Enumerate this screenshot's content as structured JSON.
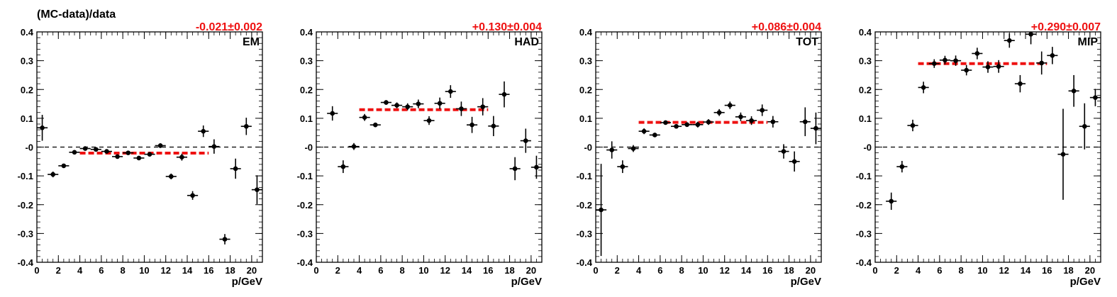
{
  "figure_ylabel": "(MC-data)/data",
  "chart_data": [
    {
      "type": "scatter",
      "label": "EM",
      "fit_text": "-0.021±0.002",
      "fit_value": -0.021,
      "fit_error": 0.002,
      "fit_range": [
        4,
        16
      ],
      "xlabel": "p/GeV",
      "xlim": [
        0,
        21
      ],
      "ylim": [
        -0.4,
        0.4
      ],
      "xticks": [
        "0",
        "2",
        "4",
        "6",
        "8",
        "10",
        "12",
        "14",
        "16",
        "18",
        "20"
      ],
      "yticks": [
        "-0.4",
        "-0.3",
        "-0.2",
        "-0.1",
        "-0",
        "0.1",
        "0.2",
        "0.3",
        "0.4"
      ],
      "reference_line": 0,
      "points": [
        {
          "x": 0.5,
          "y": 0.067,
          "yerr": 0.045
        },
        {
          "x": 1.5,
          "y": -0.095,
          "yerr": 0.01
        },
        {
          "x": 2.5,
          "y": -0.065,
          "yerr": 0.006
        },
        {
          "x": 3.5,
          "y": -0.018,
          "yerr": 0.004
        },
        {
          "x": 4.5,
          "y": -0.005,
          "yerr": 0.004
        },
        {
          "x": 5.5,
          "y": -0.008,
          "yerr": 0.004
        },
        {
          "x": 6.5,
          "y": -0.015,
          "yerr": 0.004
        },
        {
          "x": 7.5,
          "y": -0.033,
          "yerr": 0.005
        },
        {
          "x": 8.5,
          "y": -0.02,
          "yerr": 0.005
        },
        {
          "x": 9.5,
          "y": -0.038,
          "yerr": 0.005
        },
        {
          "x": 10.5,
          "y": -0.025,
          "yerr": 0.005
        },
        {
          "x": 11.5,
          "y": 0.005,
          "yerr": 0.008
        },
        {
          "x": 12.5,
          "y": -0.102,
          "yerr": 0.01
        },
        {
          "x": 13.5,
          "y": -0.035,
          "yerr": 0.012
        },
        {
          "x": 14.5,
          "y": -0.168,
          "yerr": 0.015
        },
        {
          "x": 15.5,
          "y": 0.055,
          "yerr": 0.02
        },
        {
          "x": 16.5,
          "y": 0.002,
          "yerr": 0.025
        },
        {
          "x": 17.5,
          "y": -0.32,
          "yerr": 0.018
        },
        {
          "x": 18.5,
          "y": -0.075,
          "yerr": 0.035
        },
        {
          "x": 19.5,
          "y": 0.072,
          "yerr": 0.03
        },
        {
          "x": 20.5,
          "y": -0.148,
          "yerr": 0.05
        }
      ]
    },
    {
      "type": "scatter",
      "label": "HAD",
      "fit_text": "+0.130±0.004",
      "fit_value": 0.13,
      "fit_error": 0.004,
      "fit_range": [
        4,
        16
      ],
      "xlabel": "p/GeV",
      "xlim": [
        0,
        21
      ],
      "ylim": [
        -0.4,
        0.4
      ],
      "xticks": [
        "0",
        "2",
        "4",
        "6",
        "8",
        "10",
        "12",
        "14",
        "16",
        "18",
        "20"
      ],
      "yticks": [
        "-0.4",
        "-0.3",
        "-0.2",
        "-0.1",
        "-0",
        "0.1",
        "0.2",
        "0.3",
        "0.4"
      ],
      "reference_line": 0,
      "points": [
        {
          "x": 1.5,
          "y": 0.117,
          "yerr": 0.025
        },
        {
          "x": 2.5,
          "y": -0.068,
          "yerr": 0.022
        },
        {
          "x": 3.5,
          "y": 0.002,
          "yerr": 0.012
        },
        {
          "x": 4.5,
          "y": 0.103,
          "yerr": 0.012
        },
        {
          "x": 5.5,
          "y": 0.077,
          "yerr": 0.008
        },
        {
          "x": 6.5,
          "y": 0.155,
          "yerr": 0.008
        },
        {
          "x": 7.5,
          "y": 0.145,
          "yerr": 0.01
        },
        {
          "x": 8.5,
          "y": 0.14,
          "yerr": 0.012
        },
        {
          "x": 9.5,
          "y": 0.15,
          "yerr": 0.015
        },
        {
          "x": 10.5,
          "y": 0.092,
          "yerr": 0.015
        },
        {
          "x": 11.5,
          "y": 0.152,
          "yerr": 0.02
        },
        {
          "x": 12.5,
          "y": 0.193,
          "yerr": 0.022
        },
        {
          "x": 13.5,
          "y": 0.133,
          "yerr": 0.025
        },
        {
          "x": 14.5,
          "y": 0.077,
          "yerr": 0.028
        },
        {
          "x": 15.5,
          "y": 0.14,
          "yerr": 0.03
        },
        {
          "x": 16.5,
          "y": 0.073,
          "yerr": 0.035
        },
        {
          "x": 17.5,
          "y": 0.183,
          "yerr": 0.045
        },
        {
          "x": 18.5,
          "y": -0.075,
          "yerr": 0.04
        },
        {
          "x": 19.5,
          "y": 0.022,
          "yerr": 0.042
        },
        {
          "x": 20.5,
          "y": -0.07,
          "yerr": 0.04
        }
      ]
    },
    {
      "type": "scatter",
      "label": "TOT",
      "fit_text": "+0.086±0.004",
      "fit_value": 0.086,
      "fit_error": 0.004,
      "fit_range": [
        4,
        16
      ],
      "xlabel": "p/GeV",
      "xlim": [
        0,
        21
      ],
      "ylim": [
        -0.4,
        0.4
      ],
      "xticks": [
        "0",
        "2",
        "4",
        "6",
        "8",
        "10",
        "12",
        "14",
        "16",
        "18",
        "20"
      ],
      "yticks": [
        "-0.4",
        "-0.3",
        "-0.2",
        "-0.1",
        "-0",
        "0.1",
        "0.2",
        "0.3",
        "0.4"
      ],
      "reference_line": 0,
      "points": [
        {
          "x": 0.5,
          "y": -0.218,
          "yerr": 0.16
        },
        {
          "x": 1.5,
          "y": -0.01,
          "yerr": 0.03
        },
        {
          "x": 2.5,
          "y": -0.068,
          "yerr": 0.022
        },
        {
          "x": 3.5,
          "y": -0.005,
          "yerr": 0.012
        },
        {
          "x": 4.5,
          "y": 0.055,
          "yerr": 0.01
        },
        {
          "x": 5.5,
          "y": 0.042,
          "yerr": 0.007
        },
        {
          "x": 6.5,
          "y": 0.085,
          "yerr": 0.006
        },
        {
          "x": 7.5,
          "y": 0.072,
          "yerr": 0.006
        },
        {
          "x": 8.5,
          "y": 0.078,
          "yerr": 0.008
        },
        {
          "x": 9.5,
          "y": 0.078,
          "yerr": 0.01
        },
        {
          "x": 10.5,
          "y": 0.087,
          "yerr": 0.01
        },
        {
          "x": 11.5,
          "y": 0.12,
          "yerr": 0.012
        },
        {
          "x": 12.5,
          "y": 0.145,
          "yerr": 0.013
        },
        {
          "x": 13.5,
          "y": 0.105,
          "yerr": 0.015
        },
        {
          "x": 14.5,
          "y": 0.092,
          "yerr": 0.015
        },
        {
          "x": 15.5,
          "y": 0.128,
          "yerr": 0.02
        },
        {
          "x": 16.5,
          "y": 0.088,
          "yerr": 0.02
        },
        {
          "x": 17.5,
          "y": -0.015,
          "yerr": 0.025
        },
        {
          "x": 18.5,
          "y": -0.05,
          "yerr": 0.035
        },
        {
          "x": 19.5,
          "y": 0.088,
          "yerr": 0.05
        },
        {
          "x": 20.5,
          "y": 0.065,
          "yerr": 0.055
        }
      ]
    },
    {
      "type": "scatter",
      "label": "MIP",
      "fit_text": "+0.290±0.007",
      "fit_value": 0.29,
      "fit_error": 0.007,
      "fit_range": [
        4,
        16
      ],
      "xlabel": "p/GeV",
      "xlim": [
        0,
        21
      ],
      "ylim": [
        -0.4,
        0.4
      ],
      "xticks": [
        "0",
        "2",
        "4",
        "6",
        "8",
        "10",
        "12",
        "14",
        "16",
        "18",
        "20"
      ],
      "yticks": [
        "-0.4",
        "-0.3",
        "-0.2",
        "-0.1",
        "-0",
        "0.1",
        "0.2",
        "0.3",
        "0.4"
      ],
      "reference_line": 0,
      "points": [
        {
          "x": 1.5,
          "y": -0.188,
          "yerr": 0.03
        },
        {
          "x": 2.5,
          "y": -0.068,
          "yerr": 0.02
        },
        {
          "x": 3.5,
          "y": 0.075,
          "yerr": 0.02
        },
        {
          "x": 4.5,
          "y": 0.207,
          "yerr": 0.02
        },
        {
          "x": 5.5,
          "y": 0.29,
          "yerr": 0.015
        },
        {
          "x": 6.5,
          "y": 0.302,
          "yerr": 0.015
        },
        {
          "x": 7.5,
          "y": 0.3,
          "yerr": 0.018
        },
        {
          "x": 8.5,
          "y": 0.267,
          "yerr": 0.018
        },
        {
          "x": 9.5,
          "y": 0.325,
          "yerr": 0.02
        },
        {
          "x": 10.5,
          "y": 0.278,
          "yerr": 0.02
        },
        {
          "x": 11.5,
          "y": 0.28,
          "yerr": 0.022
        },
        {
          "x": 12.5,
          "y": 0.37,
          "yerr": 0.025
        },
        {
          "x": 13.5,
          "y": 0.22,
          "yerr": 0.03
        },
        {
          "x": 14.5,
          "y": 0.392,
          "yerr": 0.035
        },
        {
          "x": 15.5,
          "y": 0.292,
          "yerr": 0.04
        },
        {
          "x": 16.5,
          "y": 0.318,
          "yerr": 0.03
        },
        {
          "x": 17.5,
          "y": -0.025,
          "yerr": 0.158
        },
        {
          "x": 18.5,
          "y": 0.195,
          "yerr": 0.055
        },
        {
          "x": 19.5,
          "y": 0.072,
          "yerr": 0.08
        },
        {
          "x": 20.5,
          "y": 0.172,
          "yerr": 0.03
        }
      ]
    }
  ]
}
